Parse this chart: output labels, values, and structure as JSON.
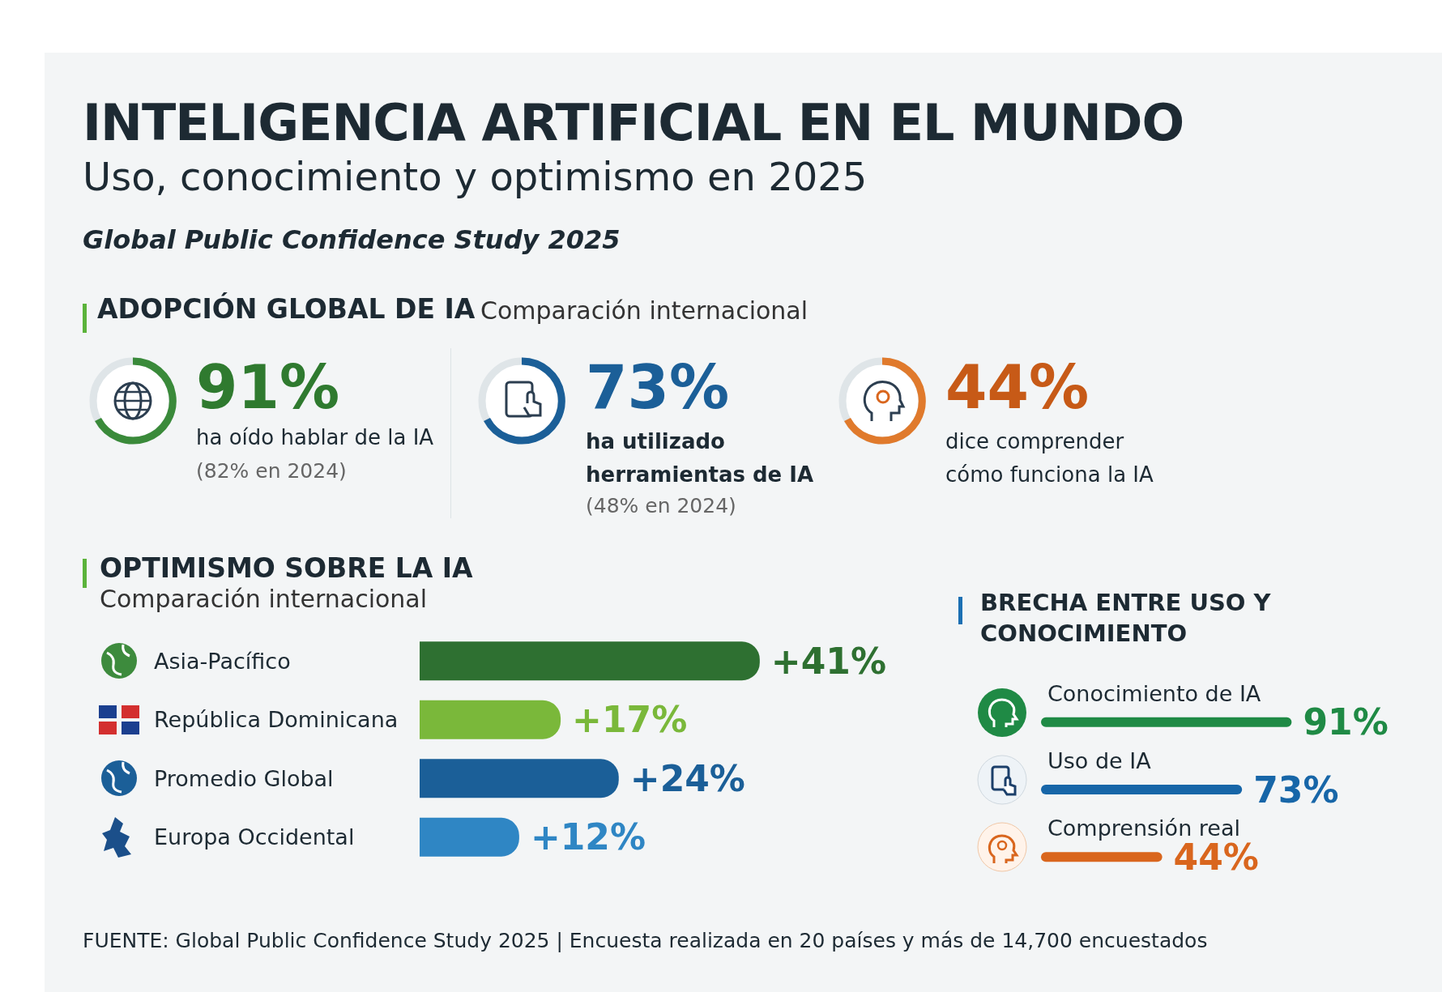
{
  "chart_data": [
    {
      "type": "other",
      "title": "INTELIGENCIA ARTIFICIAL EN EL MUNDO",
      "subtitle": "Uso, conocimiento y optimismo en 2025",
      "annotations": [
        "Global Public Confidence Study 2025",
        "ADOPCIÓN GLOBAL DE IA",
        "Comparación internacional",
        "91%",
        "ha oído hablar de la IA",
        "(82% en 2024)",
        "73%",
        "ha utilizado herramientas de IA",
        "(48% en 2024)",
        "44%",
        "dice comprender cómo funciona la IA",
        "FUENTE: Global Public Confidence Study 2025 | Encuesta realizada en 20 países y más de 14,700 encuestados"
      ]
    },
    {
      "type": "bar",
      "orientation": "horizontal",
      "title": "OPTIMISMO SOBRE LA IA",
      "subtitle": "Comparación internacional",
      "categories": [
        "Asia-Pacífico",
        "República Dominicana",
        "Promedio Global",
        "Europa Occidental"
      ],
      "values": [
        41,
        17,
        24,
        12
      ],
      "value_labels": [
        "+41%",
        "+17%",
        "+24%",
        "+12%"
      ],
      "colors": [
        "#2e7031",
        "#7ab83a",
        "#1b5f98",
        "#2f86c4"
      ],
      "grid": false
    },
    {
      "type": "bar",
      "orientation": "horizontal",
      "title": "BRECHA ENTRE USO Y CONOCIMIENTO",
      "categories": [
        "Conocimiento de IA",
        "Uso de IA",
        "Comprensión real"
      ],
      "values": [
        91,
        73,
        44
      ],
      "value_labels": [
        "91%",
        "73%",
        "44%"
      ],
      "colors": [
        "#1f8a45",
        "#1766a8",
        "#d9661e"
      ],
      "grid": false
    }
  ]
}
